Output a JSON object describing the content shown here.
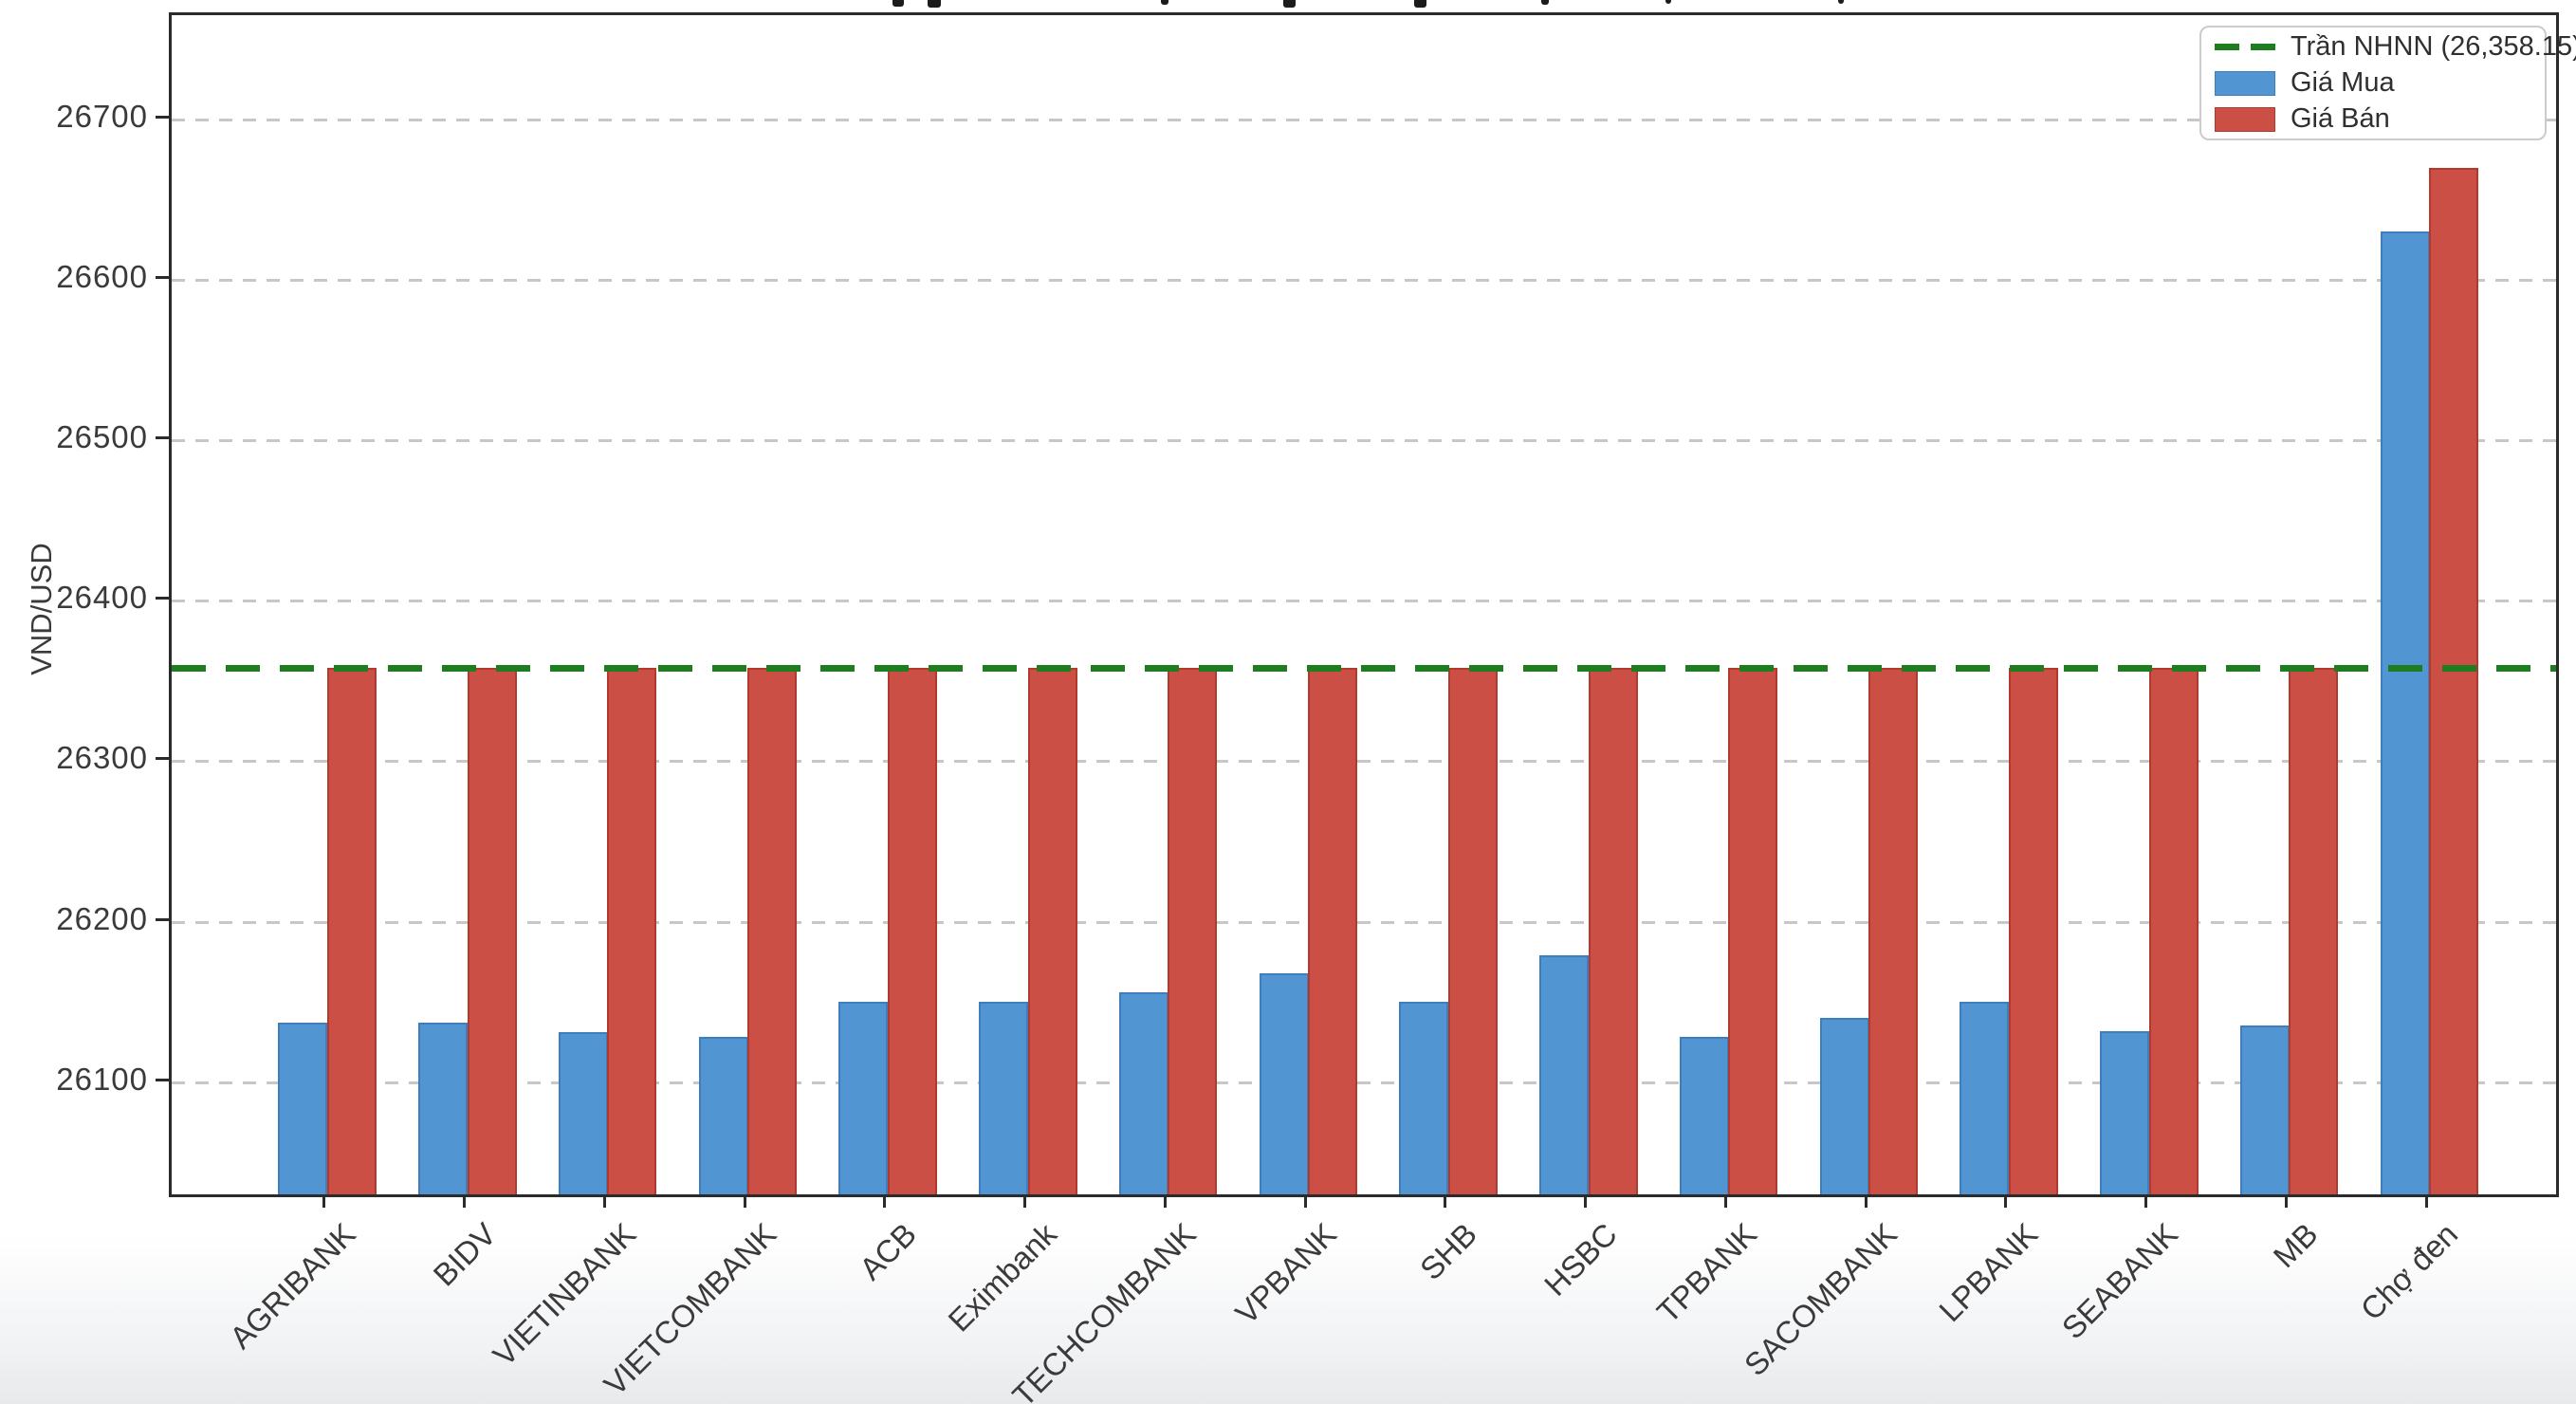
{
  "chart_data": {
    "type": "bar",
    "ylabel": "VND/USD",
    "categories": [
      "AGRIBANK",
      "BIDV",
      "VIETINBANK",
      "VIETCOMBANK",
      "ACB",
      "Eximbank",
      "TECHCOMBANK",
      "VPBANK",
      "SHB",
      "HSBC",
      "TPBANK",
      "SACOMBANK",
      "LPBANK",
      "SEABANK",
      "MB",
      "Chợ đen"
    ],
    "series": [
      {
        "name": "Giá Mua",
        "color": "#5295d3",
        "values": [
          26137,
          26137,
          26131,
          26128,
          26150,
          26150,
          26156,
          26168,
          26150,
          26179,
          26128,
          26140,
          26150,
          26132,
          26135,
          26630
        ]
      },
      {
        "name": "Giá Bán",
        "color": "#cc4f45",
        "values": [
          26358,
          26358,
          26358,
          26358,
          26358,
          26358,
          26358,
          26358,
          26358,
          26358,
          26358,
          26358,
          26358,
          26358,
          26358,
          26670
        ]
      }
    ],
    "reference_line": {
      "label": "Trần NHNN (26,358.15)",
      "value": 26358.15,
      "color": "#1e7d1e",
      "style": "dashed"
    },
    "y_ticks": [
      26100,
      26200,
      26300,
      26400,
      26500,
      26600,
      26700
    ],
    "ylim": [
      26030,
      26765
    ],
    "grid": true,
    "grid_style": "dashed",
    "legend_position": "top-right",
    "legend": [
      "Trần NHNN (26,358.15)",
      "Giá Mua",
      "Giá Bán"
    ]
  }
}
